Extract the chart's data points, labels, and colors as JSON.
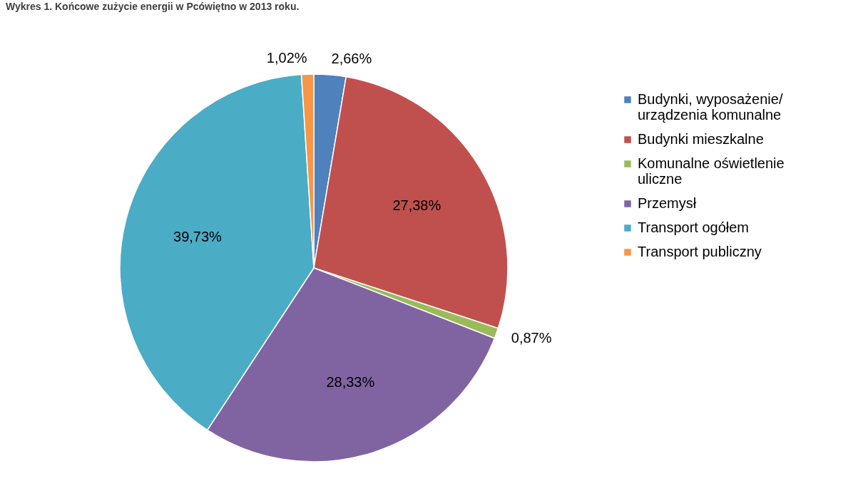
{
  "chart_data": {
    "type": "pie",
    "title": "Wykres 1. Końcowe zużycie energii w Pcówiętno w 2013 roku.",
    "categories": [
      "Budynki, wyposażenie/ urządzenia komunalne",
      "Budynki mieszkalne",
      "Komunalne oświetlenie uliczne",
      "Przemysł",
      "Transport ogółem",
      "Transport publiczny"
    ],
    "values": [
      2.66,
      27.38,
      0.87,
      28.33,
      39.73,
      1.02
    ],
    "colors": [
      "#4f81bd",
      "#c0504d",
      "#9bbb59",
      "#8064a2",
      "#4bacc6",
      "#f79646"
    ],
    "value_labels": [
      "2,66%",
      "27,38%",
      "0,87%",
      "28,33%",
      "39,73%",
      "1,02%"
    ],
    "legend": "right"
  }
}
